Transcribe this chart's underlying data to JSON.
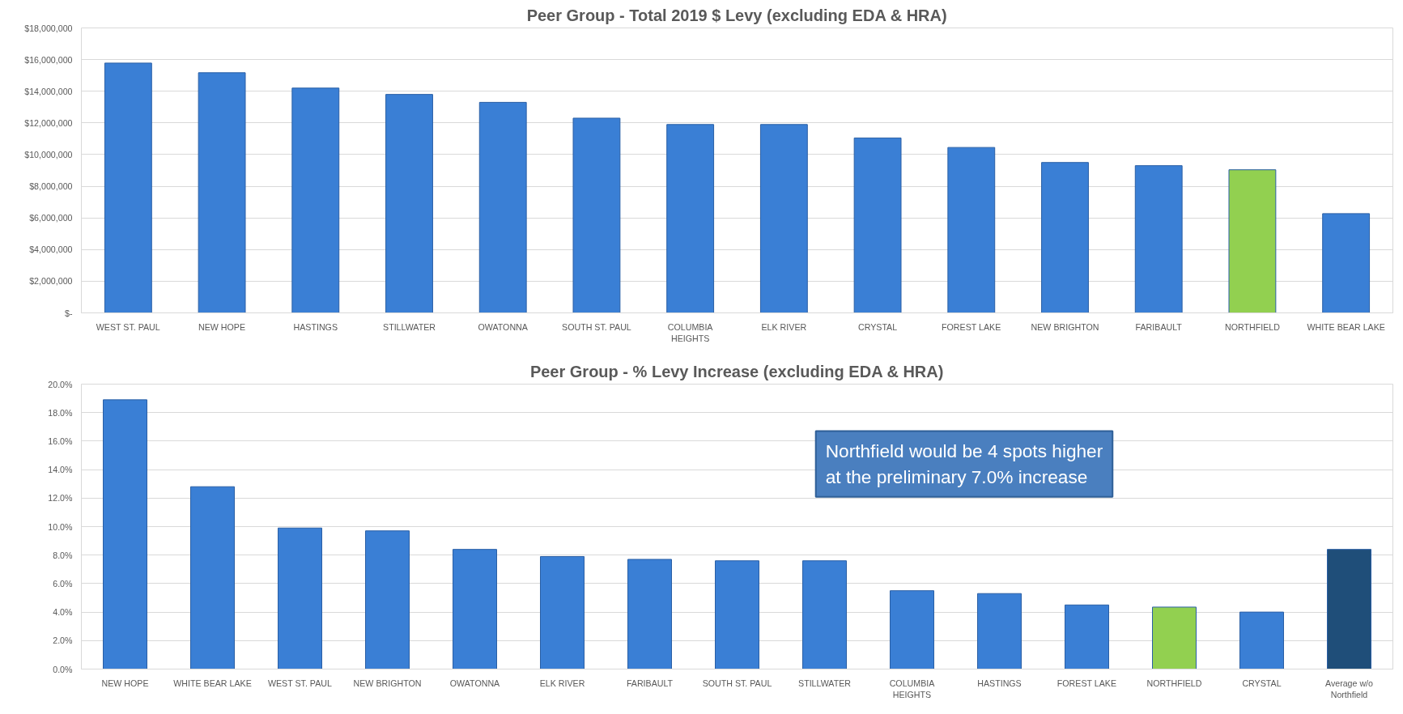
{
  "chart_data": [
    {
      "type": "bar",
      "title": "Peer Group - Total 2019 $ Levy (excluding EDA & HRA)",
      "categories": [
        "WEST ST. PAUL",
        "NEW HOPE",
        "HASTINGS",
        "STILLWATER",
        "OWATONNA",
        "SOUTH ST. PAUL",
        "COLUMBIA HEIGHTS",
        "ELK RIVER",
        "CRYSTAL",
        "FOREST LAKE",
        "NEW BRIGHTON",
        "FARIBAULT",
        "NORTHFIELD",
        "WHITE BEAR LAKE"
      ],
      "values": [
        15780000,
        15170000,
        14200000,
        13800000,
        13300000,
        12300000,
        11900000,
        11900000,
        11050000,
        10450000,
        9500000,
        9300000,
        9040000,
        6270000
      ],
      "colors": [
        "#3a7fd5",
        "#3a7fd5",
        "#3a7fd5",
        "#3a7fd5",
        "#3a7fd5",
        "#3a7fd5",
        "#3a7fd5",
        "#3a7fd5",
        "#3a7fd5",
        "#3a7fd5",
        "#3a7fd5",
        "#3a7fd5",
        "#92d050",
        "#3a7fd5"
      ],
      "ylim": [
        0,
        18000000
      ],
      "yticks": [
        {
          "value": 0,
          "label": "$-"
        },
        {
          "value": 2000000,
          "label": "$2,000,000"
        },
        {
          "value": 4000000,
          "label": "$4,000,000"
        },
        {
          "value": 6000000,
          "label": "$6,000,000"
        },
        {
          "value": 8000000,
          "label": "$8,000,000"
        },
        {
          "value": 10000000,
          "label": "$10,000,000"
        },
        {
          "value": 12000000,
          "label": "$12,000,000"
        },
        {
          "value": 14000000,
          "label": "$14,000,000"
        },
        {
          "value": 16000000,
          "label": "$16,000,000"
        },
        {
          "value": 18000000,
          "label": "$18,000,000"
        }
      ],
      "grid": "y"
    },
    {
      "type": "bar",
      "title": "Peer Group - % Levy Increase (excluding EDA & HRA)",
      "categories": [
        "NEW HOPE",
        "WHITE BEAR LAKE",
        "WEST ST. PAUL",
        "NEW BRIGHTON",
        "OWATONNA",
        "ELK RIVER",
        "FARIBAULT",
        "SOUTH ST. PAUL",
        "STILLWATER",
        "COLUMBIA HEIGHTS",
        "HASTINGS",
        "FOREST LAKE",
        "NORTHFIELD",
        "CRYSTAL",
        "Average w/o Northfield"
      ],
      "values": [
        18.9,
        12.8,
        9.9,
        9.7,
        8.4,
        7.9,
        7.7,
        7.6,
        7.6,
        5.5,
        5.3,
        4.5,
        4.35,
        4.0,
        8.4
      ],
      "colors": [
        "#3a7fd5",
        "#3a7fd5",
        "#3a7fd5",
        "#3a7fd5",
        "#3a7fd5",
        "#3a7fd5",
        "#3a7fd5",
        "#3a7fd5",
        "#3a7fd5",
        "#3a7fd5",
        "#3a7fd5",
        "#3a7fd5",
        "#92d050",
        "#3a7fd5",
        "#1f4e79"
      ],
      "ylim": [
        0,
        20
      ],
      "yticks": [
        {
          "value": 0,
          "label": "0.0%"
        },
        {
          "value": 2,
          "label": "2.0%"
        },
        {
          "value": 4,
          "label": "4.0%"
        },
        {
          "value": 6,
          "label": "6.0%"
        },
        {
          "value": 8,
          "label": "8.0%"
        },
        {
          "value": 10,
          "label": "10.0%"
        },
        {
          "value": 12,
          "label": "12.0%"
        },
        {
          "value": 14,
          "label": "14.0%"
        },
        {
          "value": 16,
          "label": "16.0%"
        },
        {
          "value": 18,
          "label": "18.0%"
        },
        {
          "value": 20,
          "label": "20.0%"
        }
      ],
      "annotations": [
        "Northfield would be 4 spots higher at  the preliminary 7.0% increase"
      ],
      "grid": "y"
    }
  ]
}
